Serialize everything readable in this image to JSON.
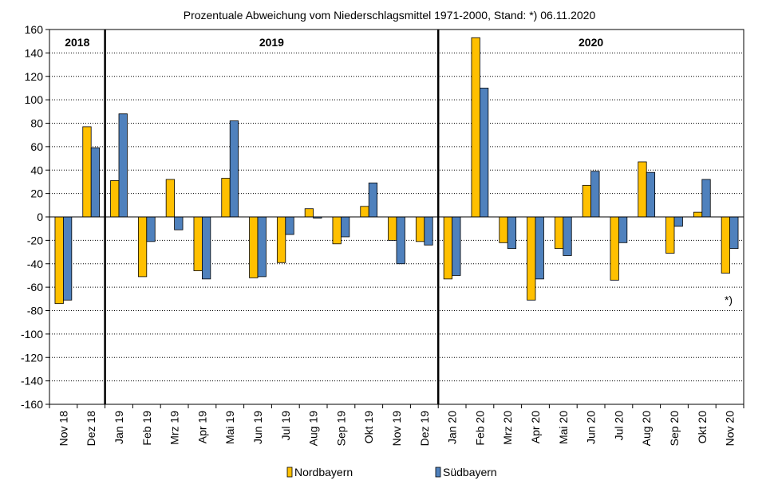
{
  "chart_data": {
    "type": "bar",
    "title": "Prozentuale  Abweichung  vom  Niederschlagsmittel  1971-2000,  Stand:  *) 06.11.2020",
    "categories": [
      "Nov 18",
      "Dez 18",
      "Jan 19",
      "Feb 19",
      "Mrz 19",
      "Apr 19",
      "Mai 19",
      "Jun 19",
      "Jul 19",
      "Aug 19",
      "Sep 19",
      "Okt 19",
      "Nov 19",
      "Dez 19",
      "Jan 20",
      "Feb 20",
      "Mrz 20",
      "Apr 20",
      "Mai 20",
      "Jun 20",
      "Jul 20",
      "Aug 20",
      "Sep 20",
      "Okt 20",
      "Nov 20"
    ],
    "series": [
      {
        "name": "Nordbayern",
        "color": "#ffc000",
        "values": [
          -74,
          77,
          31,
          -51,
          32,
          -46,
          33,
          -52,
          -39,
          7,
          -23,
          9,
          -20,
          -21,
          -53,
          153,
          -22,
          -71,
          -27,
          27,
          -54,
          47,
          -31,
          4,
          -48
        ]
      },
      {
        "name": "Südbayern",
        "color": "#4f81bd",
        "values": [
          -71,
          59,
          88,
          -21,
          -11,
          -53,
          82,
          -51,
          -15,
          -1,
          -17,
          29,
          -40,
          -24,
          -50,
          110,
          -27,
          -53,
          -33,
          39,
          -22,
          38,
          -8,
          32,
          -27
        ]
      }
    ],
    "ylim": [
      -160,
      160
    ],
    "yticks": [
      160,
      140,
      120,
      100,
      80,
      60,
      40,
      20,
      0,
      -20,
      -40,
      -60,
      -80,
      -100,
      -120,
      -140,
      -160
    ],
    "grid": true,
    "legend_position": "bottom",
    "year_labels": [
      {
        "text": "2018",
        "start": 0,
        "end": 1
      },
      {
        "text": "2019",
        "start": 2,
        "end": 13
      },
      {
        "text": "2020",
        "start": 14,
        "end": 24
      }
    ],
    "annotation": "*)"
  }
}
